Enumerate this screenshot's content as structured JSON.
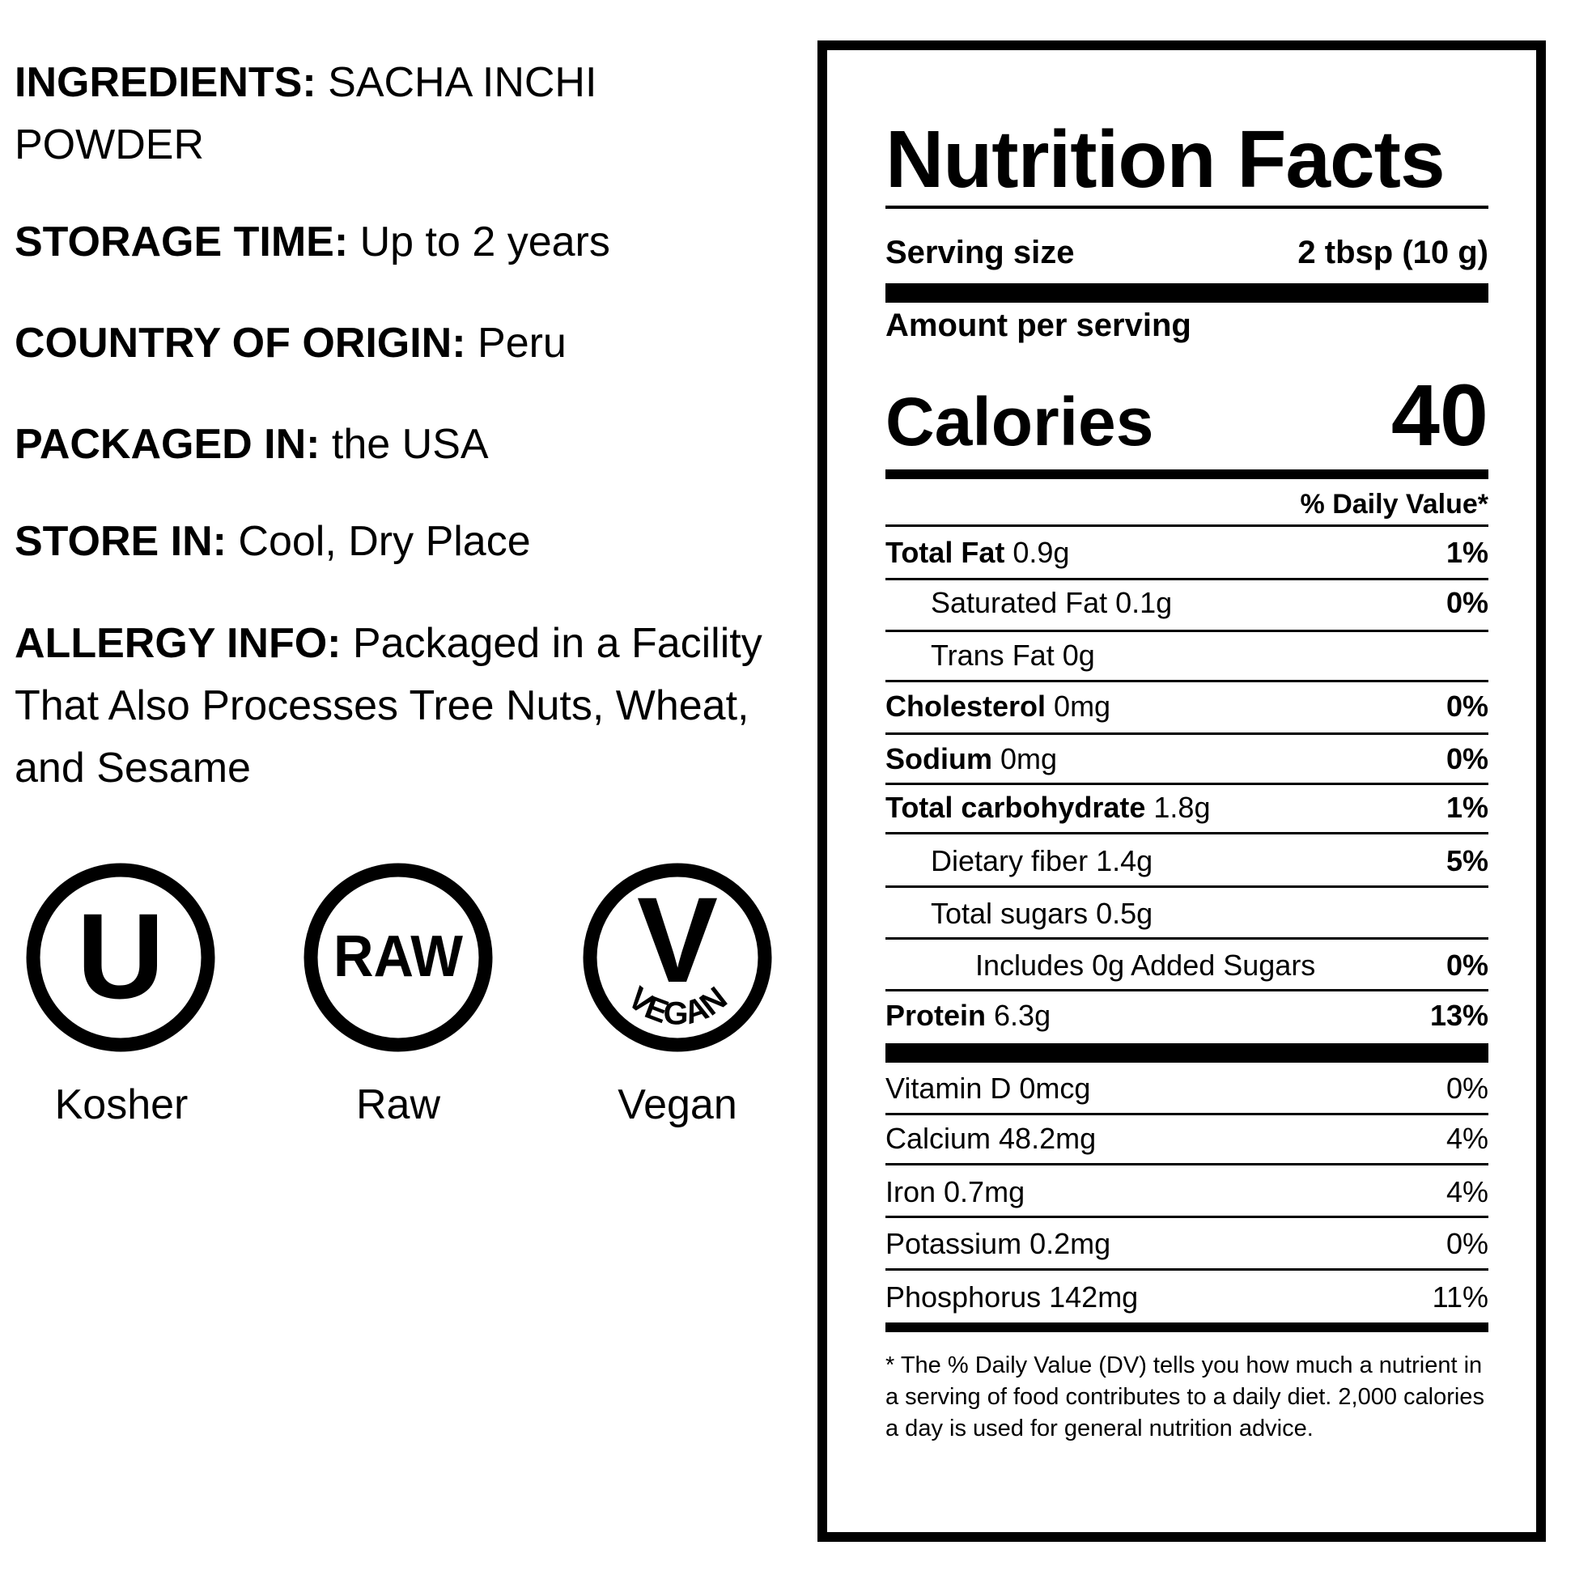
{
  "info": {
    "ingredients_label": "INGREDIENTS:",
    "ingredients_value": " SACHA INCHI POWDER",
    "storage_label": "STORAGE TIME:",
    "storage_value": " Up to 2 years",
    "origin_label": "COUNTRY OF ORIGIN:",
    "origin_value": " Peru",
    "packaged_label": "PACKAGED IN:",
    "packaged_value": " the USA",
    "store_label": "STORE IN:",
    "store_value": " Cool, Dry Place",
    "allergy_label": "ALLERGY INFO:",
    "allergy_value": " Packaged in a Facility That Also Processes Tree Nuts, Wheat, and Sesame"
  },
  "badges": {
    "kosher": {
      "symbol": "U",
      "label": "Kosher",
      "icon": "kosher-u-icon"
    },
    "raw": {
      "symbol": "RAW",
      "label": "Raw",
      "icon": "raw-icon"
    },
    "vegan": {
      "symbol": "V",
      "arc_text": "VEGAN",
      "label": "Vegan",
      "icon": "vegan-icon"
    }
  },
  "nutrition": {
    "title": "Nutrition Facts",
    "serving_label": "Serving size",
    "serving_value": "2 tbsp (10 g)",
    "amount_per_serving": "Amount per serving",
    "calories_label": "Calories",
    "calories_value": "40",
    "dv_header": "% Daily Value*",
    "rows": [
      {
        "name": "Total Fat",
        "amount": " 0.9g",
        "dv": "1%"
      },
      {
        "name": "Saturated Fat 0.1g",
        "amount": "",
        "dv": "0%"
      },
      {
        "name": "Trans Fat 0g",
        "amount": "",
        "dv": ""
      },
      {
        "name": "Cholesterol",
        "amount": " 0mg",
        "dv": "0%"
      },
      {
        "name": "Sodium",
        "amount": " 0mg",
        "dv": "0%"
      },
      {
        "name": "Total carbohydrate",
        "amount": " 1.8g",
        "dv": "1%"
      },
      {
        "name": "Dietary fiber 1.4g",
        "amount": "",
        "dv": "5%"
      },
      {
        "name": "Total sugars 0.5g",
        "amount": "",
        "dv": ""
      },
      {
        "name": "Includes 0g Added Sugars",
        "amount": "",
        "dv": "0%"
      },
      {
        "name": "Protein",
        "amount": " 6.3g",
        "dv": "13%"
      }
    ],
    "vitamins": [
      {
        "name": "Vitamin D 0mcg",
        "dv": "0%"
      },
      {
        "name": "Calcium 48.2mg",
        "dv": "4%"
      },
      {
        "name": "Iron 0.7mg",
        "dv": "4%"
      },
      {
        "name": "Potassium 0.2mg",
        "dv": "0%"
      },
      {
        "name": "Phosphorus 142mg",
        "dv": "11%"
      }
    ],
    "footnote": "* The % Daily Value (DV) tells you how much a nutrient in a serving of food contributes to a daily diet. 2,000 calories a day is used for general nutrition advice."
  }
}
